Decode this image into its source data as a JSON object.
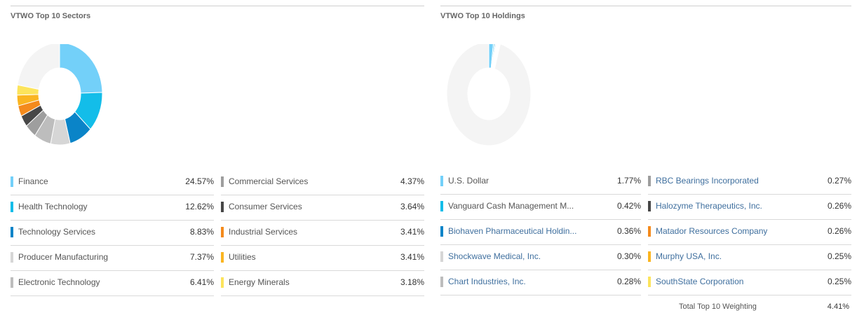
{
  "chart_data": [
    {
      "type": "pie",
      "title": "VTWO Top 10 Sectors",
      "categories": [
        "Finance",
        "Health Technology",
        "Technology Services",
        "Producer Manufacturing",
        "Electronic Technology",
        "Commercial Services",
        "Consumer Services",
        "Industrial Services",
        "Utilities",
        "Energy Minerals"
      ],
      "values": [
        24.57,
        12.62,
        8.83,
        7.37,
        6.41,
        4.37,
        3.64,
        3.41,
        3.41,
        3.18
      ],
      "colors": [
        "#73d0f9",
        "#13bde9",
        "#0a84c8",
        "#d6d6d6",
        "#bdbdbd",
        "#9e9e9e",
        "#474747",
        "#f48a1c",
        "#fab521",
        "#fce45c"
      ],
      "remainder_color": "#f4f4f4"
    },
    {
      "type": "pie",
      "title": "VTWO Top 10 Holdings",
      "categories": [
        "U.S. Dollar",
        "Vanguard Cash Management M...",
        "Biohaven Pharmaceutical Holdin...",
        "Shockwave Medical, Inc.",
        "Chart Industries, Inc.",
        "RBC Bearings Incorporated",
        "Halozyme Therapeutics, Inc.",
        "Matador Resources Company",
        "Murphy USA, Inc.",
        "SouthState Corporation"
      ],
      "values": [
        1.77,
        0.42,
        0.36,
        0.3,
        0.28,
        0.27,
        0.26,
        0.26,
        0.25,
        0.25
      ],
      "colors": [
        "#73d0f9",
        "#13bde9",
        "#0a84c8",
        "#d6d6d6",
        "#bdbdbd",
        "#9e9e9e",
        "#474747",
        "#f48a1c",
        "#fab521",
        "#fce45c"
      ],
      "remainder_color": "#f4f4f4"
    }
  ],
  "sectors": {
    "title": "VTWO Top 10 Sectors",
    "columns": [
      [
        {
          "label": "Finance",
          "value": "24.57%",
          "color": "#73d0f9"
        },
        {
          "label": "Health Technology",
          "value": "12.62%",
          "color": "#13bde9"
        },
        {
          "label": "Technology Services",
          "value": "8.83%",
          "color": "#0a84c8"
        },
        {
          "label": "Producer Manufacturing",
          "value": "7.37%",
          "color": "#d6d6d6"
        },
        {
          "label": "Electronic Technology",
          "value": "6.41%",
          "color": "#bdbdbd"
        }
      ],
      [
        {
          "label": "Commercial Services",
          "value": "4.37%",
          "color": "#9e9e9e"
        },
        {
          "label": "Consumer Services",
          "value": "3.64%",
          "color": "#474747"
        },
        {
          "label": "Industrial Services",
          "value": "3.41%",
          "color": "#f48a1c"
        },
        {
          "label": "Utilities",
          "value": "3.41%",
          "color": "#fab521"
        },
        {
          "label": "Energy Minerals",
          "value": "3.18%",
          "color": "#fce45c"
        }
      ]
    ]
  },
  "holdings": {
    "title": "VTWO Top 10 Holdings",
    "columns": [
      [
        {
          "label": "U.S. Dollar",
          "value": "1.77%",
          "color": "#73d0f9",
          "link": false
        },
        {
          "label": "Vanguard Cash Management M...",
          "value": "0.42%",
          "color": "#13bde9",
          "link": false
        },
        {
          "label": "Biohaven Pharmaceutical Holdin...",
          "value": "0.36%",
          "color": "#0a84c8",
          "link": true
        },
        {
          "label": "Shockwave Medical, Inc.",
          "value": "0.30%",
          "color": "#d6d6d6",
          "link": true
        },
        {
          "label": "Chart Industries, Inc.",
          "value": "0.28%",
          "color": "#bdbdbd",
          "link": true
        }
      ],
      [
        {
          "label": "RBC Bearings Incorporated",
          "value": "0.27%",
          "color": "#9e9e9e",
          "link": true
        },
        {
          "label": "Halozyme Therapeutics, Inc.",
          "value": "0.26%",
          "color": "#474747",
          "link": true
        },
        {
          "label": "Matador Resources Company",
          "value": "0.26%",
          "color": "#f48a1c",
          "link": true
        },
        {
          "label": "Murphy USA, Inc.",
          "value": "0.25%",
          "color": "#fab521",
          "link": true
        },
        {
          "label": "SouthState Corporation",
          "value": "0.25%",
          "color": "#fce45c",
          "link": true
        }
      ]
    ],
    "total_label": "Total Top 10 Weighting",
    "total_value": "4.41%"
  }
}
